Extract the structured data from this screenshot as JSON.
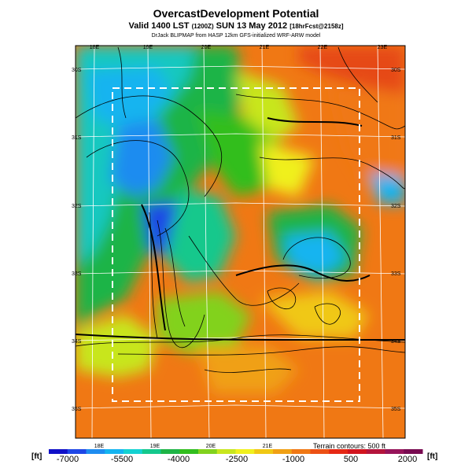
{
  "header": {
    "title": "OvercastDevelopment Potential",
    "subtitle_main": "Valid 1400 LST",
    "subtitle_utc": "(1200Z)",
    "subtitle_date": "SUN 13 May 2012",
    "subtitle_fcst": "[18hrFcst@2158z]",
    "credit": "DrJack BLIPMAP from HASP 12km GFS-initialized WRF-ARW model"
  },
  "map": {
    "top_lon_labels": [
      "18E",
      "19E",
      "20E",
      "21E",
      "22E",
      "23E"
    ],
    "bottom_lon_labels": [
      "18E",
      "19E",
      "20E",
      "21E"
    ],
    "left_lat_labels": [
      "30S",
      "31S",
      "32S",
      "33S",
      "34S",
      "35S"
    ],
    "right_lat_labels": [
      "30S",
      "31S",
      "32S",
      "33S",
      "34S",
      "35S"
    ]
  },
  "legend": {
    "unit_left": "[ft]",
    "unit_right": "[ft]",
    "tick_labels": [
      "-7000",
      "-5500",
      "-4000",
      "-2500",
      "-1000",
      "500",
      "2000"
    ],
    "terrain_note": "Terrain contours: 500 ft",
    "colors": [
      "#1010c8",
      "#1e46e6",
      "#1e8cf0",
      "#14b4f0",
      "#14d2d2",
      "#14c88c",
      "#1eb446",
      "#32be1e",
      "#82d21e",
      "#c8e61e",
      "#f0f01e",
      "#f0c814",
      "#f0a014",
      "#f07814",
      "#ec5014",
      "#e62814",
      "#d2141e",
      "#b4143c",
      "#96145a",
      "#780a50"
    ]
  },
  "colors": {
    "boundary_box": "#ffffff",
    "grid": "#ffffff",
    "contour": "#000000"
  }
}
